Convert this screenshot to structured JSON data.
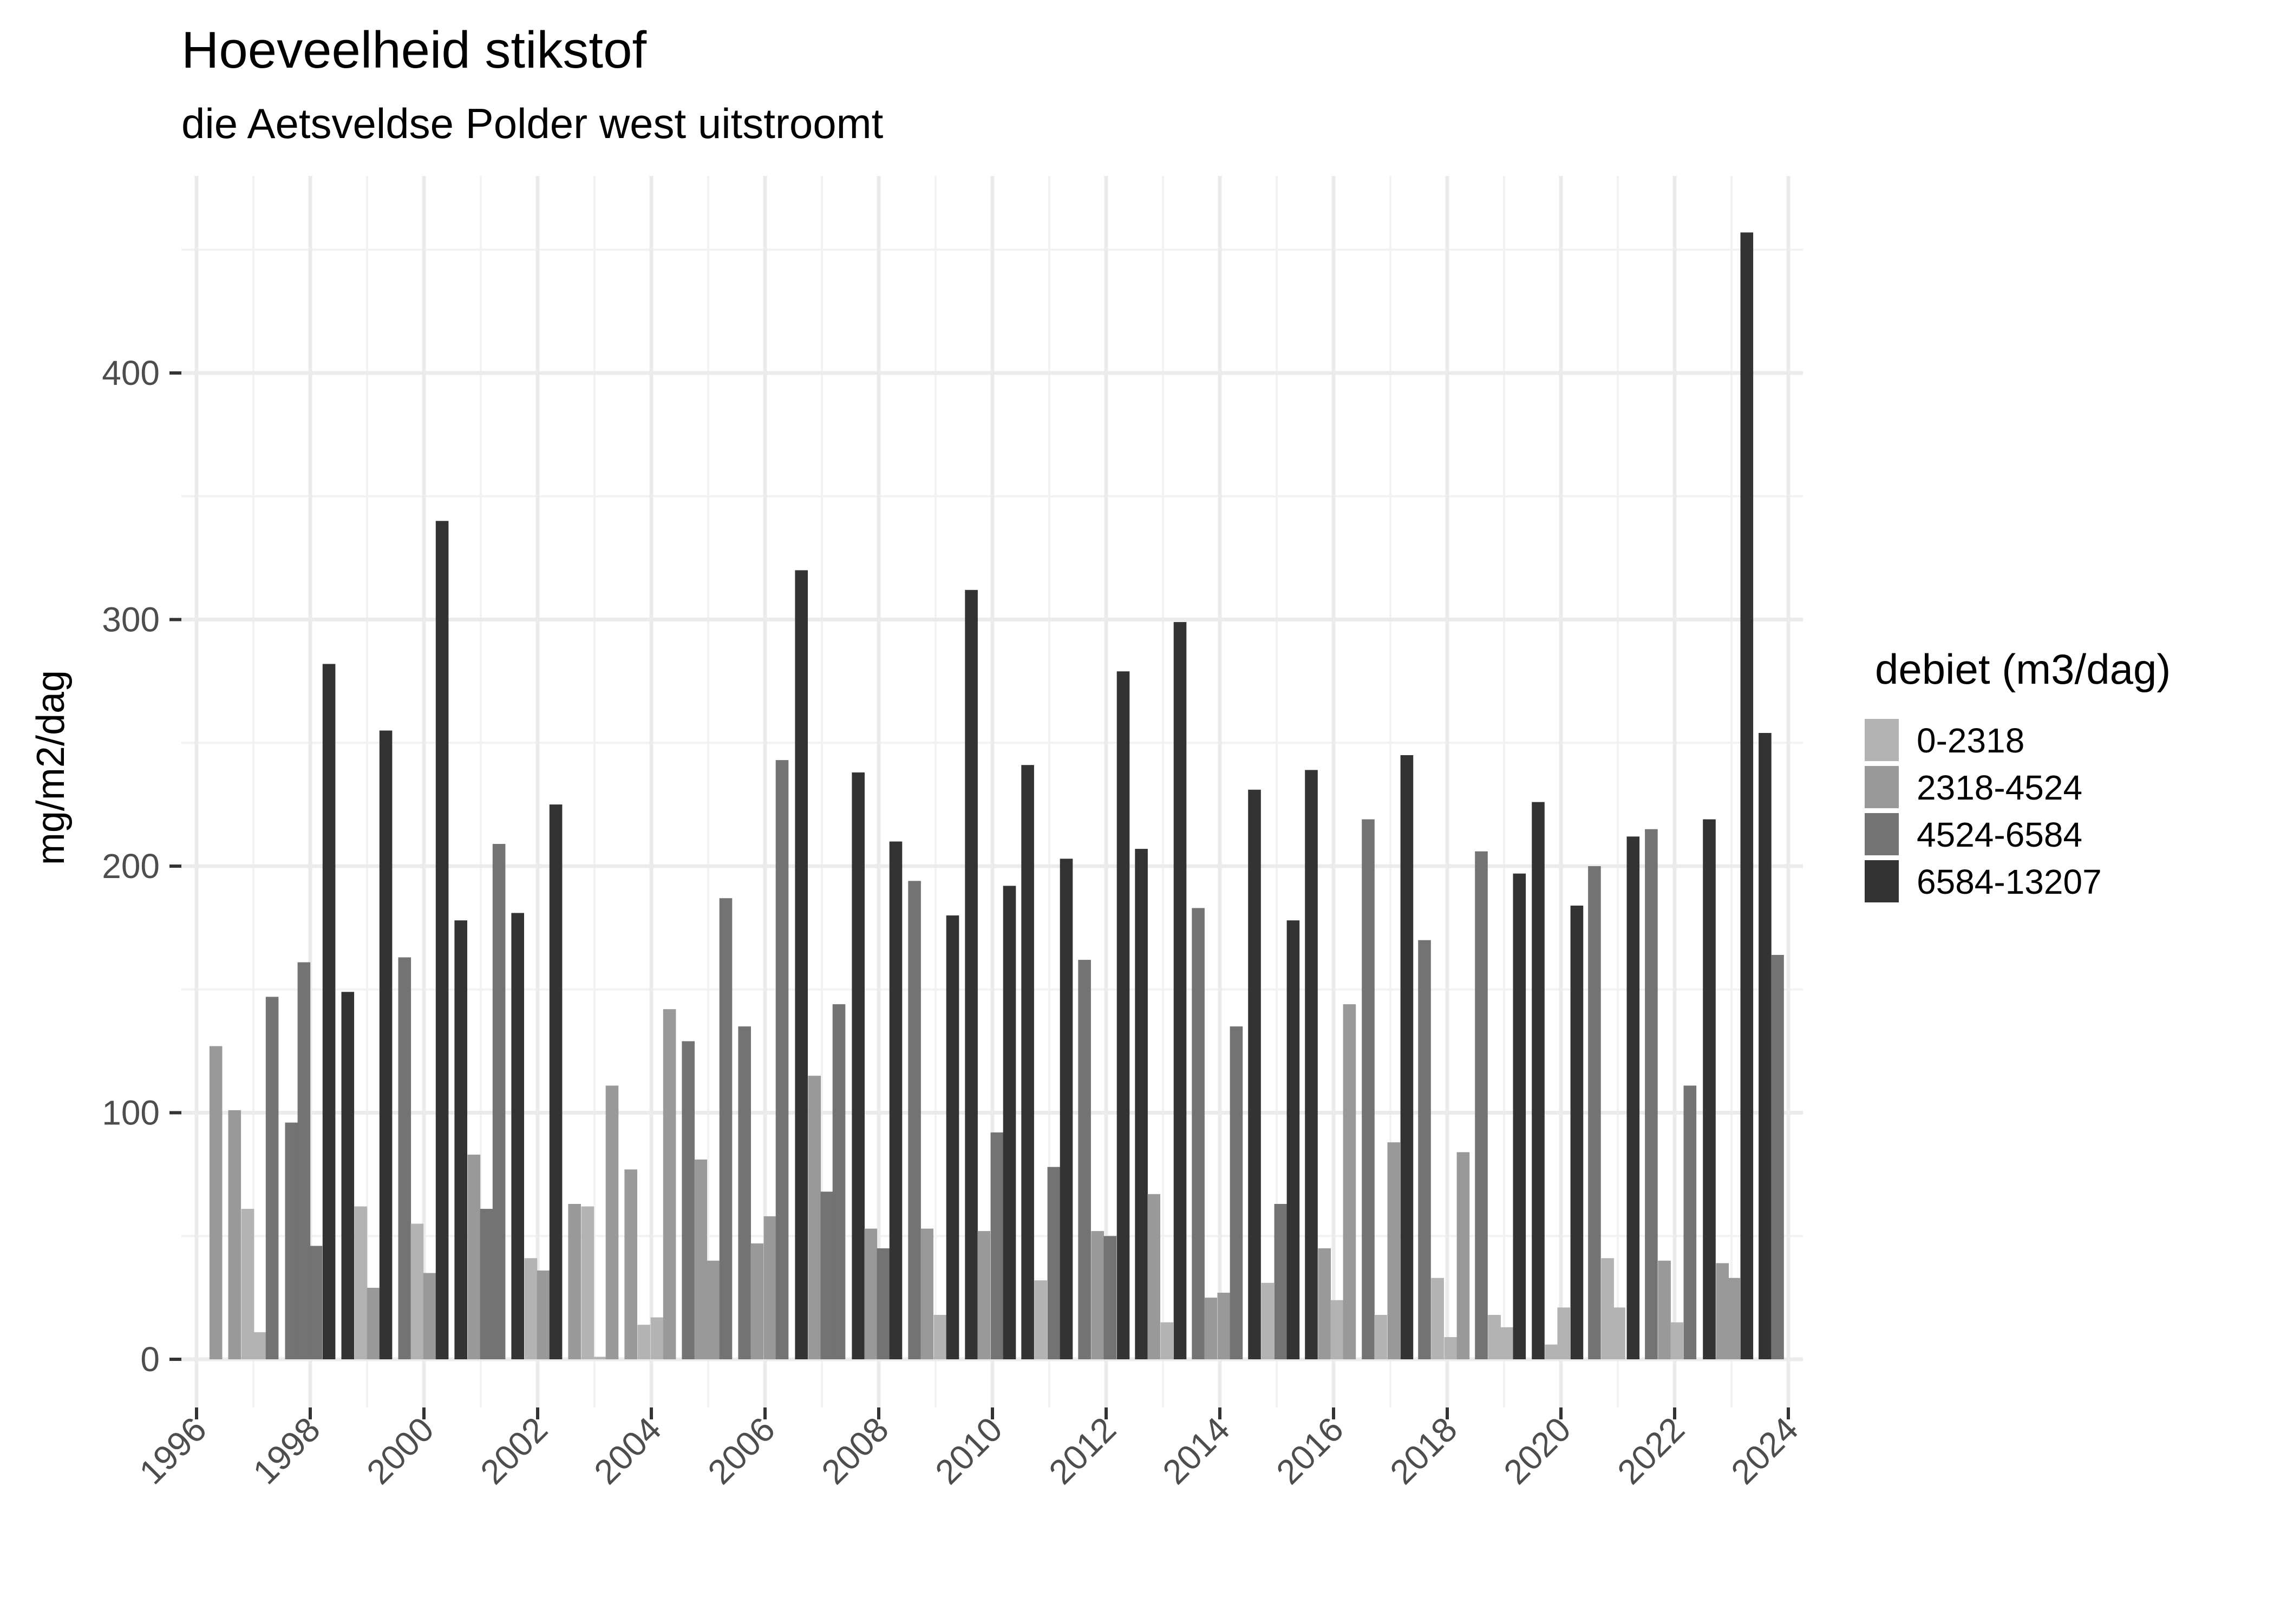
{
  "chart_data": {
    "type": "bar",
    "title": "Hoeveelheid stikstof",
    "subtitle": "die Aetsveldse Polder west uitstroomt",
    "xlabel": "",
    "ylabel": "mg/m2/dag",
    "xlim": [
      1996,
      2024
    ],
    "ylim": [
      0,
      460
    ],
    "x_ticks": [
      "1996",
      "1998",
      "2000",
      "2002",
      "2004",
      "2006",
      "2008",
      "2010",
      "2012",
      "2014",
      "2016",
      "2018",
      "2020",
      "2022",
      "2024"
    ],
    "y_ticks": [
      0,
      100,
      200,
      300,
      400
    ],
    "grid": true,
    "legend": {
      "title": "debiet (m3/dag)",
      "position": "right",
      "entries": [
        {
          "key": "L",
          "label": "0-2318",
          "color": "#b3b3b3"
        },
        {
          "key": "M",
          "label": "2318-4524",
          "color": "#999999"
        },
        {
          "key": "D",
          "label": "4524-6584",
          "color": "#737373"
        },
        {
          "key": "K",
          "label": "6584-13207",
          "color": "#333333"
        }
      ]
    },
    "bar_width_years": 0.225,
    "bars": [
      {
        "x": 1996.34,
        "v": 127,
        "c": "M"
      },
      {
        "x": 1996.67,
        "v": 101,
        "c": "M"
      },
      {
        "x": 1996.9,
        "v": 61,
        "c": "L"
      },
      {
        "x": 1997.11,
        "v": 11,
        "c": "L"
      },
      {
        "x": 1997.33,
        "v": 147,
        "c": "D"
      },
      {
        "x": 1997.67,
        "v": 96,
        "c": "D"
      },
      {
        "x": 1997.89,
        "v": 161,
        "c": "D"
      },
      {
        "x": 1998.1,
        "v": 46,
        "c": "D"
      },
      {
        "x": 1998.33,
        "v": 282,
        "c": "K"
      },
      {
        "x": 1998.66,
        "v": 149,
        "c": "K"
      },
      {
        "x": 1998.89,
        "v": 62,
        "c": "L"
      },
      {
        "x": 1999.11,
        "v": 29,
        "c": "M"
      },
      {
        "x": 1999.33,
        "v": 255,
        "c": "K"
      },
      {
        "x": 1999.66,
        "v": 163,
        "c": "D"
      },
      {
        "x": 1999.88,
        "v": 55,
        "c": "L"
      },
      {
        "x": 2000.1,
        "v": 35,
        "c": "M"
      },
      {
        "x": 2000.32,
        "v": 340,
        "c": "K"
      },
      {
        "x": 2000.65,
        "v": 178,
        "c": "K"
      },
      {
        "x": 2000.88,
        "v": 83,
        "c": "M"
      },
      {
        "x": 2001.1,
        "v": 61,
        "c": "D"
      },
      {
        "x": 2001.32,
        "v": 209,
        "c": "D"
      },
      {
        "x": 2001.65,
        "v": 181,
        "c": "K"
      },
      {
        "x": 2001.88,
        "v": 41,
        "c": "L"
      },
      {
        "x": 2002.1,
        "v": 36,
        "c": "M"
      },
      {
        "x": 2002.32,
        "v": 225,
        "c": "K"
      },
      {
        "x": 2002.65,
        "v": 63,
        "c": "M"
      },
      {
        "x": 2002.88,
        "v": 62,
        "c": "L"
      },
      {
        "x": 2003.1,
        "v": 1,
        "c": "L"
      },
      {
        "x": 2003.31,
        "v": 111,
        "c": "M"
      },
      {
        "x": 2003.64,
        "v": 77,
        "c": "M"
      },
      {
        "x": 2003.87,
        "v": 14,
        "c": "L"
      },
      {
        "x": 2004.1,
        "v": 17,
        "c": "L"
      },
      {
        "x": 2004.32,
        "v": 142,
        "c": "M"
      },
      {
        "x": 2004.65,
        "v": 129,
        "c": "D"
      },
      {
        "x": 2004.87,
        "v": 81,
        "c": "M"
      },
      {
        "x": 2005.09,
        "v": 40,
        "c": "M"
      },
      {
        "x": 2005.31,
        "v": 187,
        "c": "D"
      },
      {
        "x": 2005.64,
        "v": 135,
        "c": "D"
      },
      {
        "x": 2005.86,
        "v": 47,
        "c": "M"
      },
      {
        "x": 2006.09,
        "v": 58,
        "c": "M"
      },
      {
        "x": 2006.3,
        "v": 243,
        "c": "D"
      },
      {
        "x": 2006.64,
        "v": 320,
        "c": "K"
      },
      {
        "x": 2006.87,
        "v": 115,
        "c": "M"
      },
      {
        "x": 2007.09,
        "v": 68,
        "c": "D"
      },
      {
        "x": 2007.3,
        "v": 144,
        "c": "D"
      },
      {
        "x": 2007.64,
        "v": 238,
        "c": "K"
      },
      {
        "x": 2007.86,
        "v": 53,
        "c": "M"
      },
      {
        "x": 2008.08,
        "v": 45,
        "c": "D"
      },
      {
        "x": 2008.3,
        "v": 210,
        "c": "K"
      },
      {
        "x": 2008.63,
        "v": 194,
        "c": "D"
      },
      {
        "x": 2008.85,
        "v": 53,
        "c": "M"
      },
      {
        "x": 2009.08,
        "v": 18,
        "c": "L"
      },
      {
        "x": 2009.3,
        "v": 180,
        "c": "K"
      },
      {
        "x": 2009.63,
        "v": 312,
        "c": "K"
      },
      {
        "x": 2009.85,
        "v": 52,
        "c": "M"
      },
      {
        "x": 2010.08,
        "v": 92,
        "c": "D"
      },
      {
        "x": 2010.3,
        "v": 192,
        "c": "K"
      },
      {
        "x": 2010.62,
        "v": 241,
        "c": "K"
      },
      {
        "x": 2010.85,
        "v": 32,
        "c": "L"
      },
      {
        "x": 2011.08,
        "v": 78,
        "c": "D"
      },
      {
        "x": 2011.3,
        "v": 203,
        "c": "K"
      },
      {
        "x": 2011.62,
        "v": 162,
        "c": "D"
      },
      {
        "x": 2011.85,
        "v": 52,
        "c": "M"
      },
      {
        "x": 2012.07,
        "v": 50,
        "c": "D"
      },
      {
        "x": 2012.3,
        "v": 279,
        "c": "K"
      },
      {
        "x": 2012.62,
        "v": 207,
        "c": "K"
      },
      {
        "x": 2012.84,
        "v": 67,
        "c": "M"
      },
      {
        "x": 2013.07,
        "v": 15,
        "c": "L"
      },
      {
        "x": 2013.3,
        "v": 299,
        "c": "K"
      },
      {
        "x": 2013.62,
        "v": 183,
        "c": "D"
      },
      {
        "x": 2013.84,
        "v": 25,
        "c": "M"
      },
      {
        "x": 2014.07,
        "v": 27,
        "c": "M"
      },
      {
        "x": 2014.29,
        "v": 135,
        "c": "D"
      },
      {
        "x": 2014.61,
        "v": 231,
        "c": "K"
      },
      {
        "x": 2014.84,
        "v": 31,
        "c": "L"
      },
      {
        "x": 2015.07,
        "v": 63,
        "c": "D"
      },
      {
        "x": 2015.29,
        "v": 178,
        "c": "K"
      },
      {
        "x": 2015.61,
        "v": 239,
        "c": "K"
      },
      {
        "x": 2015.84,
        "v": 45,
        "c": "M"
      },
      {
        "x": 2016.06,
        "v": 24,
        "c": "L"
      },
      {
        "x": 2016.28,
        "v": 144,
        "c": "M"
      },
      {
        "x": 2016.61,
        "v": 219,
        "c": "D"
      },
      {
        "x": 2016.83,
        "v": 18,
        "c": "L"
      },
      {
        "x": 2017.06,
        "v": 88,
        "c": "M"
      },
      {
        "x": 2017.29,
        "v": 245,
        "c": "K"
      },
      {
        "x": 2017.6,
        "v": 170,
        "c": "D"
      },
      {
        "x": 2017.83,
        "v": 33,
        "c": "L"
      },
      {
        "x": 2018.06,
        "v": 9,
        "c": "L"
      },
      {
        "x": 2018.28,
        "v": 84,
        "c": "M"
      },
      {
        "x": 2018.6,
        "v": 206,
        "c": "D"
      },
      {
        "x": 2018.83,
        "v": 18,
        "c": "L"
      },
      {
        "x": 2019.05,
        "v": 13,
        "c": "L"
      },
      {
        "x": 2019.27,
        "v": 197,
        "c": "K"
      },
      {
        "x": 2019.6,
        "v": 226,
        "c": "K"
      },
      {
        "x": 2019.83,
        "v": 6,
        "c": "L"
      },
      {
        "x": 2020.05,
        "v": 21,
        "c": "L"
      },
      {
        "x": 2020.28,
        "v": 184,
        "c": "K"
      },
      {
        "x": 2020.59,
        "v": 200,
        "c": "D"
      },
      {
        "x": 2020.82,
        "v": 41,
        "c": "L"
      },
      {
        "x": 2021.02,
        "v": 21,
        "c": "L"
      },
      {
        "x": 2021.27,
        "v": 212,
        "c": "K"
      },
      {
        "x": 2021.59,
        "v": 215,
        "c": "D"
      },
      {
        "x": 2021.82,
        "v": 40,
        "c": "M"
      },
      {
        "x": 2022.04,
        "v": 15,
        "c": "L"
      },
      {
        "x": 2022.27,
        "v": 111,
        "c": "D"
      },
      {
        "x": 2022.61,
        "v": 219,
        "c": "K"
      },
      {
        "x": 2022.84,
        "v": 39,
        "c": "M"
      },
      {
        "x": 2023.04,
        "v": 33,
        "c": "M"
      },
      {
        "x": 2023.27,
        "v": 457,
        "c": "K"
      },
      {
        "x": 2023.59,
        "v": 254,
        "c": "K"
      },
      {
        "x": 2023.81,
        "v": 164,
        "c": "D"
      }
    ]
  },
  "colors": {
    "panel_bg": "#ffffff",
    "grid_major": "#ebebeb",
    "grid_minor": "#f2f2f2",
    "tick_text": "#4d4d4d",
    "tick_mark": "#333333"
  }
}
